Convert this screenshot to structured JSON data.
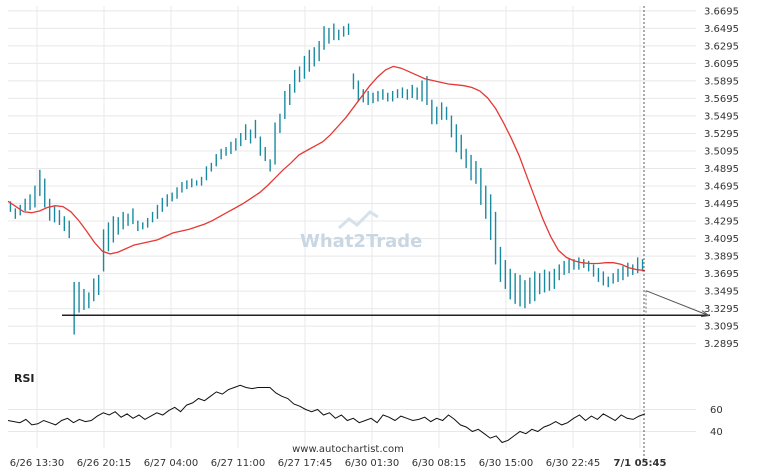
{
  "chart_data": {
    "type": "line",
    "series": [],
    "y_ticks": [
      "3.6695",
      "3.6495",
      "3.6295",
      "3.6095",
      "3.5895",
      "3.5695",
      "3.5495",
      "3.5295",
      "3.5095",
      "3.4895",
      "3.4695",
      "3.4495",
      "3.4295",
      "3.4095",
      "3.3895",
      "3.3695",
      "3.3495",
      "3.3295",
      "3.3095",
      "3.2895"
    ],
    "ylim": [
      3.28,
      3.675
    ],
    "x_ticks": [
      "6/26 13:30",
      "6/26 20:15",
      "6/27 04:00",
      "6/27 11:00",
      "6/27 17:45",
      "6/30 01:30",
      "6/30 08:15",
      "6/30 15:00",
      "6/30 22:45",
      "7/1 05:45"
    ],
    "price_bars": [
      [
        3.452,
        3.44
      ],
      [
        3.444,
        3.432
      ],
      [
        3.448,
        3.436
      ],
      [
        3.455,
        3.441
      ],
      [
        3.46,
        3.442
      ],
      [
        3.47,
        3.445
      ],
      [
        3.488,
        3.458
      ],
      [
        3.478,
        3.445
      ],
      [
        3.455,
        3.43
      ],
      [
        3.446,
        3.428
      ],
      [
        3.442,
        3.425
      ],
      [
        3.435,
        3.418
      ],
      [
        3.43,
        3.41
      ],
      [
        3.3,
        3.36
      ],
      [
        3.36,
        3.325
      ],
      [
        3.352,
        3.328
      ],
      [
        3.348,
        3.33
      ],
      [
        3.364,
        3.338
      ],
      [
        3.368,
        3.345
      ],
      [
        3.42,
        3.372
      ],
      [
        3.428,
        3.395
      ],
      [
        3.435,
        3.405
      ],
      [
        3.434,
        3.414
      ],
      [
        3.44,
        3.42
      ],
      [
        3.438,
        3.424
      ],
      [
        3.444,
        3.426
      ],
      [
        3.43,
        3.418
      ],
      [
        3.428,
        3.42
      ],
      [
        3.433,
        3.422
      ],
      [
        3.44,
        3.428
      ],
      [
        3.448,
        3.432
      ],
      [
        3.456,
        3.44
      ],
      [
        3.46,
        3.446
      ],
      [
        3.462,
        3.452
      ],
      [
        3.468,
        3.455
      ],
      [
        3.474,
        3.462
      ],
      [
        3.476,
        3.466
      ],
      [
        3.478,
        3.468
      ],
      [
        3.476,
        3.47
      ],
      [
        3.48,
        3.47
      ],
      [
        3.492,
        3.476
      ],
      [
        3.496,
        3.486
      ],
      [
        3.506,
        3.492
      ],
      [
        3.512,
        3.5
      ],
      [
        3.514,
        3.504
      ],
      [
        3.52,
        3.506
      ],
      [
        3.524,
        3.51
      ],
      [
        3.53,
        3.515
      ],
      [
        3.54,
        3.522
      ],
      [
        3.534,
        3.518
      ],
      [
        3.545,
        3.524
      ],
      [
        3.526,
        3.504
      ],
      [
        3.514,
        3.498
      ],
      [
        3.5,
        3.486
      ],
      [
        3.542,
        3.494
      ],
      [
        3.552,
        3.53
      ],
      [
        3.578,
        3.546
      ],
      [
        3.586,
        3.562
      ],
      [
        3.602,
        3.576
      ],
      [
        3.606,
        3.588
      ],
      [
        3.618,
        3.592
      ],
      [
        3.625,
        3.6
      ],
      [
        3.628,
        3.606
      ],
      [
        3.635,
        3.612
      ],
      [
        3.652,
        3.625
      ],
      [
        3.65,
        3.632
      ],
      [
        3.655,
        3.636
      ],
      [
        3.648,
        3.636
      ],
      [
        3.652,
        3.64
      ],
      [
        3.655,
        3.642
      ],
      [
        3.598,
        3.58
      ],
      [
        3.59,
        3.566
      ],
      [
        3.58,
        3.565
      ],
      [
        3.578,
        3.562
      ],
      [
        3.576,
        3.564
      ],
      [
        3.578,
        3.566
      ],
      [
        3.58,
        3.568
      ],
      [
        3.576,
        3.566
      ],
      [
        3.578,
        3.566
      ],
      [
        3.58,
        3.57
      ],
      [
        3.582,
        3.57
      ],
      [
        3.58,
        3.568
      ],
      [
        3.585,
        3.57
      ],
      [
        3.582,
        3.568
      ],
      [
        3.59,
        3.566
      ],
      [
        3.595,
        3.562
      ],
      [
        3.568,
        3.54
      ],
      [
        3.56,
        3.54
      ],
      [
        3.565,
        3.545
      ],
      [
        3.56,
        3.545
      ],
      [
        3.55,
        3.525
      ],
      [
        3.54,
        3.508
      ],
      [
        3.528,
        3.5
      ],
      [
        3.512,
        3.49
      ],
      [
        3.505,
        3.476
      ],
      [
        3.498,
        3.472
      ],
      [
        3.49,
        3.448
      ],
      [
        3.47,
        3.432
      ],
      [
        3.46,
        3.408
      ],
      [
        3.44,
        3.38
      ],
      [
        3.4,
        3.36
      ],
      [
        3.385,
        3.352
      ],
      [
        3.375,
        3.34
      ],
      [
        3.37,
        3.335
      ],
      [
        3.368,
        3.332
      ],
      [
        3.362,
        3.33
      ],
      [
        3.365,
        3.335
      ],
      [
        3.372,
        3.338
      ],
      [
        3.37,
        3.346
      ],
      [
        3.374,
        3.348
      ],
      [
        3.372,
        3.35
      ],
      [
        3.375,
        3.352
      ],
      [
        3.38,
        3.362
      ],
      [
        3.384,
        3.368
      ],
      [
        3.386,
        3.37
      ],
      [
        3.386,
        3.374
      ],
      [
        3.388,
        3.374
      ],
      [
        3.386,
        3.376
      ],
      [
        3.384,
        3.372
      ],
      [
        3.38,
        3.366
      ],
      [
        3.376,
        3.36
      ],
      [
        3.372,
        3.356
      ],
      [
        3.366,
        3.354
      ],
      [
        3.37,
        3.358
      ],
      [
        3.375,
        3.36
      ],
      [
        3.378,
        3.362
      ],
      [
        3.382,
        3.366
      ],
      [
        3.38,
        3.368
      ],
      [
        3.388,
        3.37
      ],
      [
        3.386,
        3.372
      ]
    ],
    "moving_average": [
      3.452,
      3.446,
      3.44,
      3.439,
      3.441,
      3.445,
      3.447,
      3.446,
      3.44,
      3.43,
      3.418,
      3.405,
      3.395,
      3.392,
      3.394,
      3.398,
      3.402,
      3.404,
      3.406,
      3.408,
      3.412,
      3.416,
      3.418,
      3.42,
      3.423,
      3.426,
      3.43,
      3.435,
      3.44,
      3.445,
      3.45,
      3.456,
      3.462,
      3.47,
      3.479,
      3.488,
      3.496,
      3.505,
      3.51,
      3.515,
      3.52,
      3.528,
      3.538,
      3.548,
      3.56,
      3.572,
      3.584,
      3.594,
      3.602,
      3.606,
      3.604,
      3.6,
      3.596,
      3.592,
      3.59,
      3.588,
      3.586,
      3.585,
      3.584,
      3.582,
      3.578,
      3.57,
      3.558,
      3.542,
      3.524,
      3.504,
      3.48,
      3.456,
      3.432,
      3.412,
      3.396,
      3.388,
      3.384,
      3.382,
      3.381,
      3.381,
      3.382,
      3.382,
      3.38,
      3.376,
      3.374,
      3.373
    ],
    "support_level": 3.322,
    "forecast": {
      "from": 3.35,
      "to": 3.3215
    },
    "rsi": {
      "title": "RSI",
      "y_ticks": [
        "60",
        "40"
      ],
      "ylim": [
        25,
        85
      ],
      "values": [
        50,
        49,
        48,
        51,
        46,
        47,
        50,
        48,
        46,
        50,
        52,
        48,
        51,
        49,
        50,
        54,
        57,
        55,
        58,
        53,
        56,
        52,
        55,
        51,
        54,
        57,
        55,
        59,
        62,
        58,
        64,
        66,
        70,
        68,
        72,
        76,
        74,
        78,
        80,
        82,
        80,
        79,
        80,
        80,
        80,
        75,
        72,
        70,
        65,
        63,
        60,
        58,
        60,
        55,
        57,
        52,
        55,
        50,
        52,
        48,
        50,
        52,
        48,
        55,
        53,
        50,
        54,
        52,
        50,
        51,
        53,
        49,
        52,
        50,
        55,
        51,
        46,
        44,
        40,
        42,
        38,
        34,
        36,
        30,
        32,
        36,
        40,
        38,
        42,
        40,
        44,
        46,
        49,
        46,
        48,
        52,
        55,
        50,
        54,
        51,
        56,
        53,
        50,
        55,
        52,
        51,
        54,
        56
      ]
    }
  },
  "watermark": {
    "brand_a": "What",
    "brand_b": "2",
    "brand_c": "Trade"
  },
  "footer": {
    "url": "www.autochartist.com"
  },
  "colors": {
    "bar": "#1a8aa0",
    "moving_average": "#e53935",
    "support_line": "#222222",
    "forecast": "#555555",
    "rsi_line": "#111111",
    "grid": "#e8e8e8",
    "watermark": "#c9d7e3"
  }
}
